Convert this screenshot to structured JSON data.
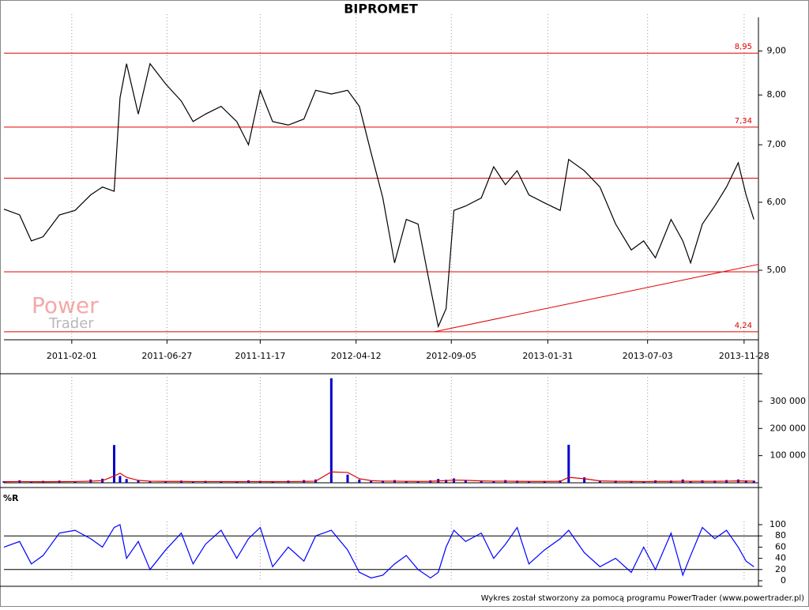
{
  "chart_data": [
    {
      "type": "line",
      "title": "BIPROMET",
      "x": [
        "2010-10-20",
        "2010-11-13",
        "2010-12-01",
        "2010-12-19",
        "2011-01-13",
        "2011-02-06",
        "2011-03-02",
        "2011-03-20",
        "2011-04-07",
        "2011-04-16",
        "2011-04-26",
        "2011-05-14",
        "2011-06-01",
        "2011-06-25",
        "2011-07-19",
        "2011-08-06",
        "2011-08-25",
        "2011-09-18",
        "2011-10-12",
        "2011-10-30",
        "2011-11-17",
        "2011-12-06",
        "2011-12-30",
        "2012-01-23",
        "2012-02-10",
        "2012-03-05",
        "2012-03-30",
        "2012-04-17",
        "2012-05-05",
        "2012-05-23",
        "2012-06-10",
        "2012-06-28",
        "2012-07-16",
        "2012-08-04",
        "2012-08-16",
        "2012-08-28",
        "2012-09-09",
        "2012-09-27",
        "2012-10-21",
        "2012-11-09",
        "2012-11-27",
        "2012-12-15",
        "2013-01-02",
        "2013-01-26",
        "2013-02-19",
        "2013-03-04",
        "2013-03-28",
        "2013-04-21",
        "2013-05-15",
        "2013-06-08",
        "2013-06-27",
        "2013-07-15",
        "2013-08-08",
        "2013-08-26",
        "2013-09-07",
        "2013-09-25",
        "2013-10-14",
        "2013-11-01",
        "2013-11-19",
        "2013-12-01",
        "2013-12-13"
      ],
      "series": [
        {
          "color": "#000000",
          "values": [
            5.89,
            5.8,
            5.41,
            5.47,
            5.8,
            5.87,
            6.12,
            6.25,
            6.18,
            7.94,
            8.7,
            7.6,
            8.7,
            8.24,
            7.87,
            7.45,
            7.6,
            7.76,
            7.45,
            7.0,
            8.1,
            7.45,
            7.38,
            7.5,
            8.1,
            8.02,
            8.1,
            7.76,
            6.85,
            6.07,
            5.1,
            5.73,
            5.66,
            4.77,
            4.3,
            4.51,
            5.87,
            5.94,
            6.07,
            6.6,
            6.29,
            6.53,
            6.12,
            5.99,
            5.87,
            6.73,
            6.53,
            6.25,
            5.66,
            5.28,
            5.41,
            5.17,
            5.73,
            5.41,
            5.1,
            5.66,
            5.94,
            6.25,
            6.67,
            6.12,
            5.73
          ]
        }
      ],
      "xlim": [
        "2010-10-20",
        "2013-12-20"
      ],
      "xticks": [
        "2011-02-01",
        "2011-06-27",
        "2011-11-17",
        "2012-04-12",
        "2012-09-05",
        "2013-01-31",
        "2013-07-03",
        "2013-11-28"
      ],
      "ylim": [
        4.15,
        9.85
      ],
      "yscale": "log",
      "yticks": [
        {
          "value": 5,
          "label": "5,00"
        },
        {
          "value": 6,
          "label": "6,00"
        },
        {
          "value": 7,
          "label": "7,00"
        },
        {
          "value": 8,
          "label": "8,00"
        },
        {
          "value": 9,
          "label": "9,00"
        }
      ],
      "hline_color": "#e00000",
      "hlines": [
        {
          "value": 8.95,
          "label": "8,95"
        },
        {
          "value": 7.34,
          "label": "7,34"
        },
        {
          "value": 6.4
        },
        {
          "value": 4.98
        },
        {
          "value": 4.24,
          "label": "4,24"
        }
      ],
      "trendline": {
        "x": [
          "2012-08-10",
          "2013-12-20"
        ],
        "y": [
          4.24,
          5.08
        ]
      },
      "grid": true
    },
    {
      "type": "bar",
      "x": [
        "2010-10-20",
        "2010-11-13",
        "2010-12-01",
        "2010-12-19",
        "2011-01-13",
        "2011-02-06",
        "2011-03-02",
        "2011-03-20",
        "2011-04-07",
        "2011-04-16",
        "2011-04-26",
        "2011-05-14",
        "2011-06-01",
        "2011-06-25",
        "2011-07-19",
        "2011-08-06",
        "2011-08-25",
        "2011-09-18",
        "2011-10-12",
        "2011-10-30",
        "2011-11-17",
        "2011-12-06",
        "2011-12-30",
        "2012-01-23",
        "2012-02-10",
        "2012-03-05",
        "2012-03-30",
        "2012-04-17",
        "2012-05-05",
        "2012-05-23",
        "2012-06-10",
        "2012-06-28",
        "2012-07-16",
        "2012-08-04",
        "2012-08-16",
        "2012-08-28",
        "2012-09-09",
        "2012-09-27",
        "2012-10-21",
        "2012-11-09",
        "2012-11-27",
        "2012-12-15",
        "2013-01-02",
        "2013-01-26",
        "2013-02-19",
        "2013-03-04",
        "2013-03-28",
        "2013-04-21",
        "2013-05-15",
        "2013-06-08",
        "2013-06-27",
        "2013-07-15",
        "2013-08-08",
        "2013-08-26",
        "2013-09-07",
        "2013-09-25",
        "2013-10-14",
        "2013-11-01",
        "2013-11-19",
        "2013-12-01",
        "2013-12-13"
      ],
      "series": [
        {
          "type": "bar",
          "color": "#0000cc",
          "values": [
            6000,
            9000,
            5000,
            7000,
            8000,
            6000,
            12000,
            15000,
            139000,
            25000,
            14000,
            9000,
            7000,
            6000,
            8000,
            5000,
            7000,
            6000,
            5000,
            9000,
            7000,
            6000,
            8000,
            10000,
            12000,
            385000,
            30000,
            12000,
            9000,
            8000,
            10000,
            7000,
            6000,
            9000,
            14000,
            11000,
            16000,
            9000,
            8000,
            7000,
            10000,
            8000,
            6000,
            7000,
            9000,
            140000,
            20000,
            9000,
            8000,
            7000,
            6000,
            9000,
            8000,
            12000,
            7000,
            9000,
            8000,
            10000,
            12000,
            9000,
            8000
          ]
        },
        {
          "type": "line",
          "color": "#e00000",
          "values": [
            4000,
            4500,
            4200,
            4000,
            4300,
            4500,
            6000,
            8000,
            25000,
            35000,
            20000,
            9000,
            6000,
            5000,
            5000,
            4500,
            4500,
            4500,
            4300,
            4500,
            4500,
            4300,
            4500,
            5000,
            6000,
            40000,
            38000,
            15000,
            8000,
            6000,
            6000,
            5500,
            5000,
            5500,
            7000,
            8000,
            10000,
            9000,
            7000,
            6000,
            6000,
            5500,
            5000,
            5000,
            5500,
            20000,
            15000,
            7000,
            5500,
            5000,
            4500,
            5000,
            5000,
            6000,
            5500,
            5500,
            5500,
            6000,
            7000,
            6500,
            6000
          ]
        }
      ],
      "xlim": [
        "2010-10-20",
        "2013-12-20"
      ],
      "xticks": [
        "2011-02-01",
        "2011-06-27",
        "2011-11-17",
        "2012-04-12",
        "2012-09-05",
        "2013-01-31",
        "2013-07-03",
        "2013-11-28"
      ],
      "ylim": [
        0,
        390000
      ],
      "yticks": [
        {
          "value": 100000,
          "label": "100 000"
        },
        {
          "value": 200000,
          "label": "200 000"
        },
        {
          "value": 300000,
          "label": "300 000"
        }
      ],
      "grid": true
    },
    {
      "type": "line",
      "title": "%R",
      "x": [
        "2010-10-20",
        "2010-11-13",
        "2010-12-01",
        "2010-12-19",
        "2011-01-13",
        "2011-02-06",
        "2011-03-02",
        "2011-03-20",
        "2011-04-07",
        "2011-04-16",
        "2011-04-26",
        "2011-05-14",
        "2011-06-01",
        "2011-06-25",
        "2011-07-19",
        "2011-08-06",
        "2011-08-25",
        "2011-09-18",
        "2011-10-12",
        "2011-10-30",
        "2011-11-17",
        "2011-12-06",
        "2011-12-30",
        "2012-01-23",
        "2012-02-10",
        "2012-03-05",
        "2012-03-30",
        "2012-04-17",
        "2012-05-05",
        "2012-05-23",
        "2012-06-10",
        "2012-06-28",
        "2012-07-16",
        "2012-08-04",
        "2012-08-16",
        "2012-08-28",
        "2012-09-09",
        "2012-09-27",
        "2012-10-21",
        "2012-11-09",
        "2012-11-27",
        "2012-12-15",
        "2013-01-02",
        "2013-01-26",
        "2013-02-19",
        "2013-03-04",
        "2013-03-28",
        "2013-04-21",
        "2013-05-15",
        "2013-06-08",
        "2013-06-27",
        "2013-07-15",
        "2013-08-08",
        "2013-08-26",
        "2013-09-07",
        "2013-09-25",
        "2013-10-14",
        "2013-11-01",
        "2013-11-19",
        "2013-12-01",
        "2013-12-13"
      ],
      "series": [
        {
          "color": "#0000ff",
          "values": [
            60,
            70,
            30,
            45,
            85,
            90,
            75,
            60,
            95,
            100,
            40,
            70,
            20,
            55,
            85,
            30,
            65,
            90,
            40,
            75,
            95,
            25,
            60,
            35,
            80,
            90,
            55,
            15,
            5,
            10,
            30,
            45,
            20,
            5,
            15,
            60,
            90,
            70,
            85,
            40,
            65,
            95,
            30,
            55,
            75,
            90,
            50,
            25,
            40,
            15,
            60,
            20,
            85,
            10,
            45,
            95,
            75,
            90,
            60,
            35,
            25
          ]
        }
      ],
      "xlim": [
        "2010-10-20",
        "2013-12-20"
      ],
      "xticks": [
        "2011-02-01",
        "2011-06-27",
        "2011-11-17",
        "2012-04-12",
        "2012-09-05",
        "2013-01-31",
        "2013-07-03",
        "2013-11-28"
      ],
      "ylim": [
        0,
        100
      ],
      "yticks": [
        0,
        20,
        40,
        60,
        80,
        100
      ],
      "hline_color": "#000000",
      "hlines": [
        {
          "value": 20
        },
        {
          "value": 80
        }
      ],
      "grid": true
    }
  ],
  "watermark": [
    "Power",
    "Trader"
  ],
  "footer": "Wykres został stworzony za pomocą programu PowerTrader (www.powertrader.pl)"
}
